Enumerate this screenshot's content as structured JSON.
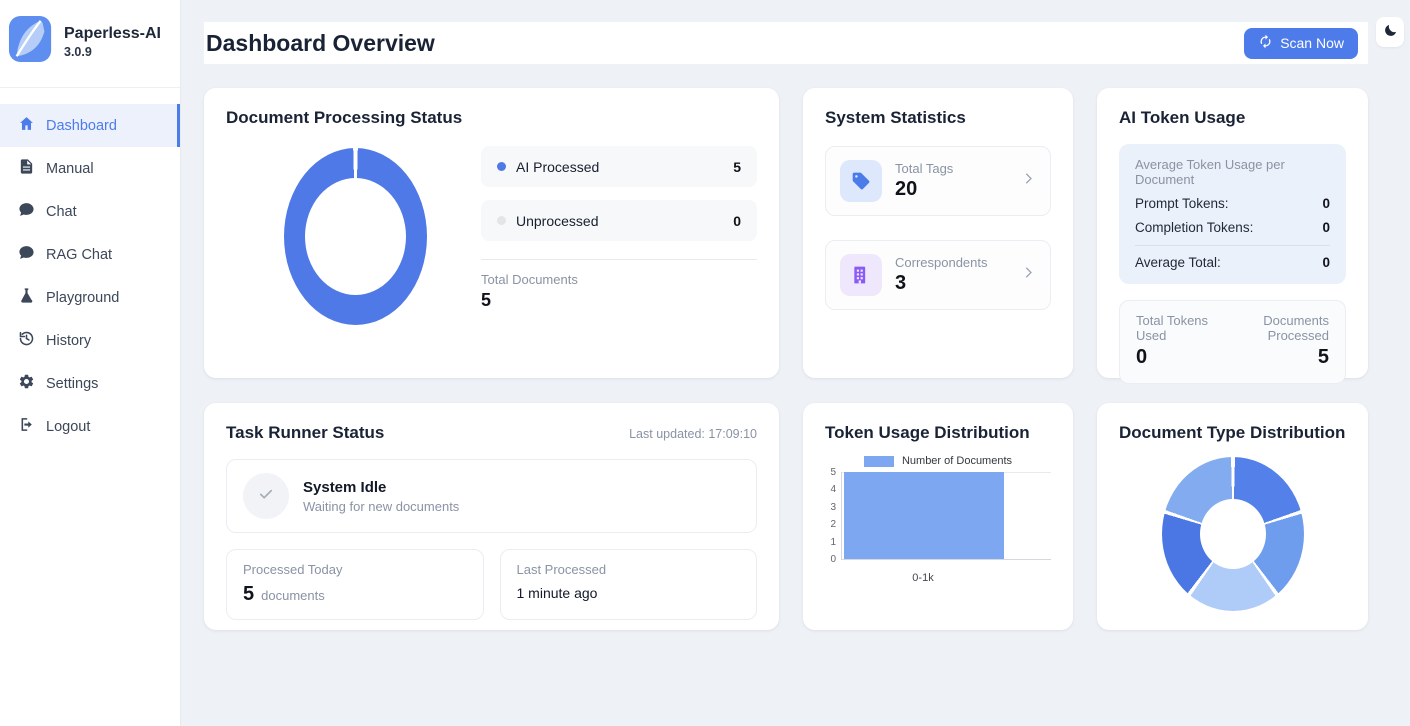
{
  "app": {
    "name": "Paperless-AI",
    "version": "3.0.9"
  },
  "sidebar": {
    "items": [
      {
        "label": "Dashboard",
        "icon": "home-icon",
        "active": true
      },
      {
        "label": "Manual",
        "icon": "document-icon",
        "active": false
      },
      {
        "label": "Chat",
        "icon": "chat-icon",
        "active": false
      },
      {
        "label": "RAG Chat",
        "icon": "chat-icon",
        "active": false
      },
      {
        "label": "Playground",
        "icon": "flask-icon",
        "active": false
      },
      {
        "label": "History",
        "icon": "history-icon",
        "active": false
      },
      {
        "label": "Settings",
        "icon": "gear-icon",
        "active": false
      },
      {
        "label": "Logout",
        "icon": "logout-icon",
        "active": false
      }
    ]
  },
  "header": {
    "title": "Dashboard Overview",
    "scan_button": "Scan Now"
  },
  "colors": {
    "accent": "#4c7cea",
    "processed": "#4e79e7",
    "unprocessed": "#e3e5e9",
    "bar": "#7da7f1",
    "tag_icon": "#4b7ce9",
    "correspondent_icon": "#8a5cf5"
  },
  "cards": {
    "doc_processing": {
      "title": "Document Processing Status",
      "legend": [
        {
          "label": "AI Processed",
          "value": "5"
        },
        {
          "label": "Unprocessed",
          "value": "0"
        }
      ],
      "total_label": "Total Documents",
      "total_value": "5"
    },
    "system_stats": {
      "title": "System Statistics",
      "items": [
        {
          "label": "Total Tags",
          "value": "20",
          "icon": "tag-icon"
        },
        {
          "label": "Correspondents",
          "value": "3",
          "icon": "building-icon"
        }
      ]
    },
    "ai_token_usage": {
      "title": "AI Token Usage",
      "average_header": "Average Token Usage per Document",
      "rows": [
        {
          "label": "Prompt Tokens:",
          "value": "0"
        },
        {
          "label": "Completion Tokens:",
          "value": "0"
        }
      ],
      "average_total": {
        "label": "Average Total:",
        "value": "0"
      },
      "totals": [
        {
          "label": "Total Tokens Used",
          "value": "0"
        },
        {
          "label": "Documents Processed",
          "value": "5"
        }
      ]
    },
    "task_runner": {
      "title": "Task Runner Status",
      "last_updated": "Last updated: 17:09:10",
      "status_title": "System Idle",
      "status_subtitle": "Waiting for new documents",
      "processed_today": {
        "label": "Processed Today",
        "value": "5",
        "unit": "documents"
      },
      "last_processed": {
        "label": "Last Processed",
        "value": "1 minute ago"
      }
    },
    "token_distribution": {
      "title": "Token Usage Distribution"
    },
    "doc_type_distribution": {
      "title": "Document Type Distribution"
    }
  },
  "chart_data": [
    {
      "type": "pie",
      "variant": "doughnut",
      "title": "Document Processing Status",
      "labels": [
        "AI Processed",
        "Unprocessed"
      ],
      "values": [
        5,
        0
      ],
      "colors": [
        "#4e79e7",
        "#e3e5e9"
      ],
      "total_label": "Total Documents",
      "total": 5,
      "legend_position": "right"
    },
    {
      "type": "bar",
      "title": "Token Usage Distribution",
      "categories": [
        "0-1k"
      ],
      "values": [
        5
      ],
      "series_label": "Number of Documents",
      "ylim": [
        0,
        5
      ],
      "y_ticks": [
        5,
        4,
        3,
        2,
        1,
        0
      ],
      "bar_color": "#7da7f1",
      "legend_position": "top"
    },
    {
      "type": "pie",
      "variant": "doughnut",
      "title": "Document Type Distribution",
      "values": [
        1,
        1,
        1,
        1,
        1
      ],
      "colors": [
        "#5381e9",
        "#6f9ded",
        "#afcbf7",
        "#4a77e4",
        "#82abf0"
      ]
    }
  ]
}
